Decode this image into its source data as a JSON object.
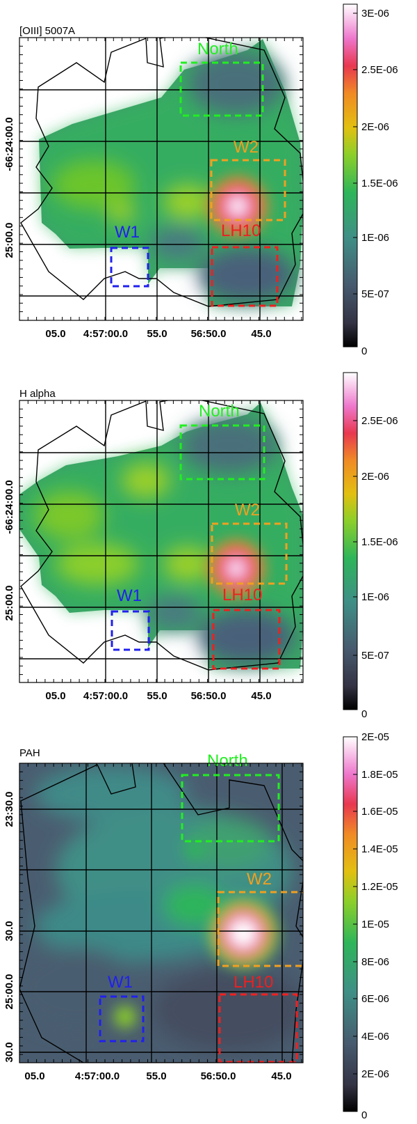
{
  "panels": [
    {
      "id": "oiii",
      "title": "[OIII] 5007A",
      "x_ticks": [
        "05.0",
        "4:57:00.0",
        "55.0",
        "56:50.0",
        "45.0"
      ],
      "y_ticks": [
        "-66:24:00.0",
        "25:00.0"
      ],
      "colorbar_ticks": [
        "3E-06",
        "2.5E-06",
        "2E-06",
        "1.5E-06",
        "1E-06",
        "5E-07",
        "0"
      ],
      "regions": [
        {
          "name": "North",
          "color": "#22ee22"
        },
        {
          "name": "W2",
          "color": "#f0a020"
        },
        {
          "name": "LH10",
          "color": "#ee2020"
        },
        {
          "name": "W1",
          "color": "#2020ee"
        }
      ]
    },
    {
      "id": "halpha",
      "title": "H alpha",
      "x_ticks": [
        "05.0",
        "4:57:00.0",
        "55.0",
        "56:50.0",
        "45.0"
      ],
      "y_ticks": [
        "-66:24:00.0",
        "25:00.0"
      ],
      "colorbar_ticks": [
        "2.5E-06",
        "2E-06",
        "1.5E-06",
        "1E-06",
        "5E-07",
        "0"
      ],
      "regions": [
        {
          "name": "North",
          "color": "#22ee22"
        },
        {
          "name": "W2",
          "color": "#f0a020"
        },
        {
          "name": "LH10",
          "color": "#ee2020"
        },
        {
          "name": "W1",
          "color": "#2020ee"
        }
      ]
    },
    {
      "id": "pah",
      "title": "PAH",
      "x_ticks": [
        "05.0",
        "4:57:00.0",
        "55.0",
        "56:50.0",
        "45.0"
      ],
      "y_ticks": [
        "23:30.0",
        "30.0",
        "25:00.0",
        "30.0"
      ],
      "colorbar_ticks": [
        "2E-05",
        "1.8E-05",
        "1.6E-05",
        "1.4E-05",
        "1.2E-05",
        "1E-05",
        "8E-06",
        "6E-06",
        "4E-06",
        "2E-06",
        "0"
      ],
      "regions": [
        {
          "name": "North",
          "color": "#22ee22"
        },
        {
          "name": "W2",
          "color": "#f0a020"
        },
        {
          "name": "LH10",
          "color": "#ee2020"
        },
        {
          "name": "W1",
          "color": "#2020ee"
        }
      ]
    }
  ]
}
